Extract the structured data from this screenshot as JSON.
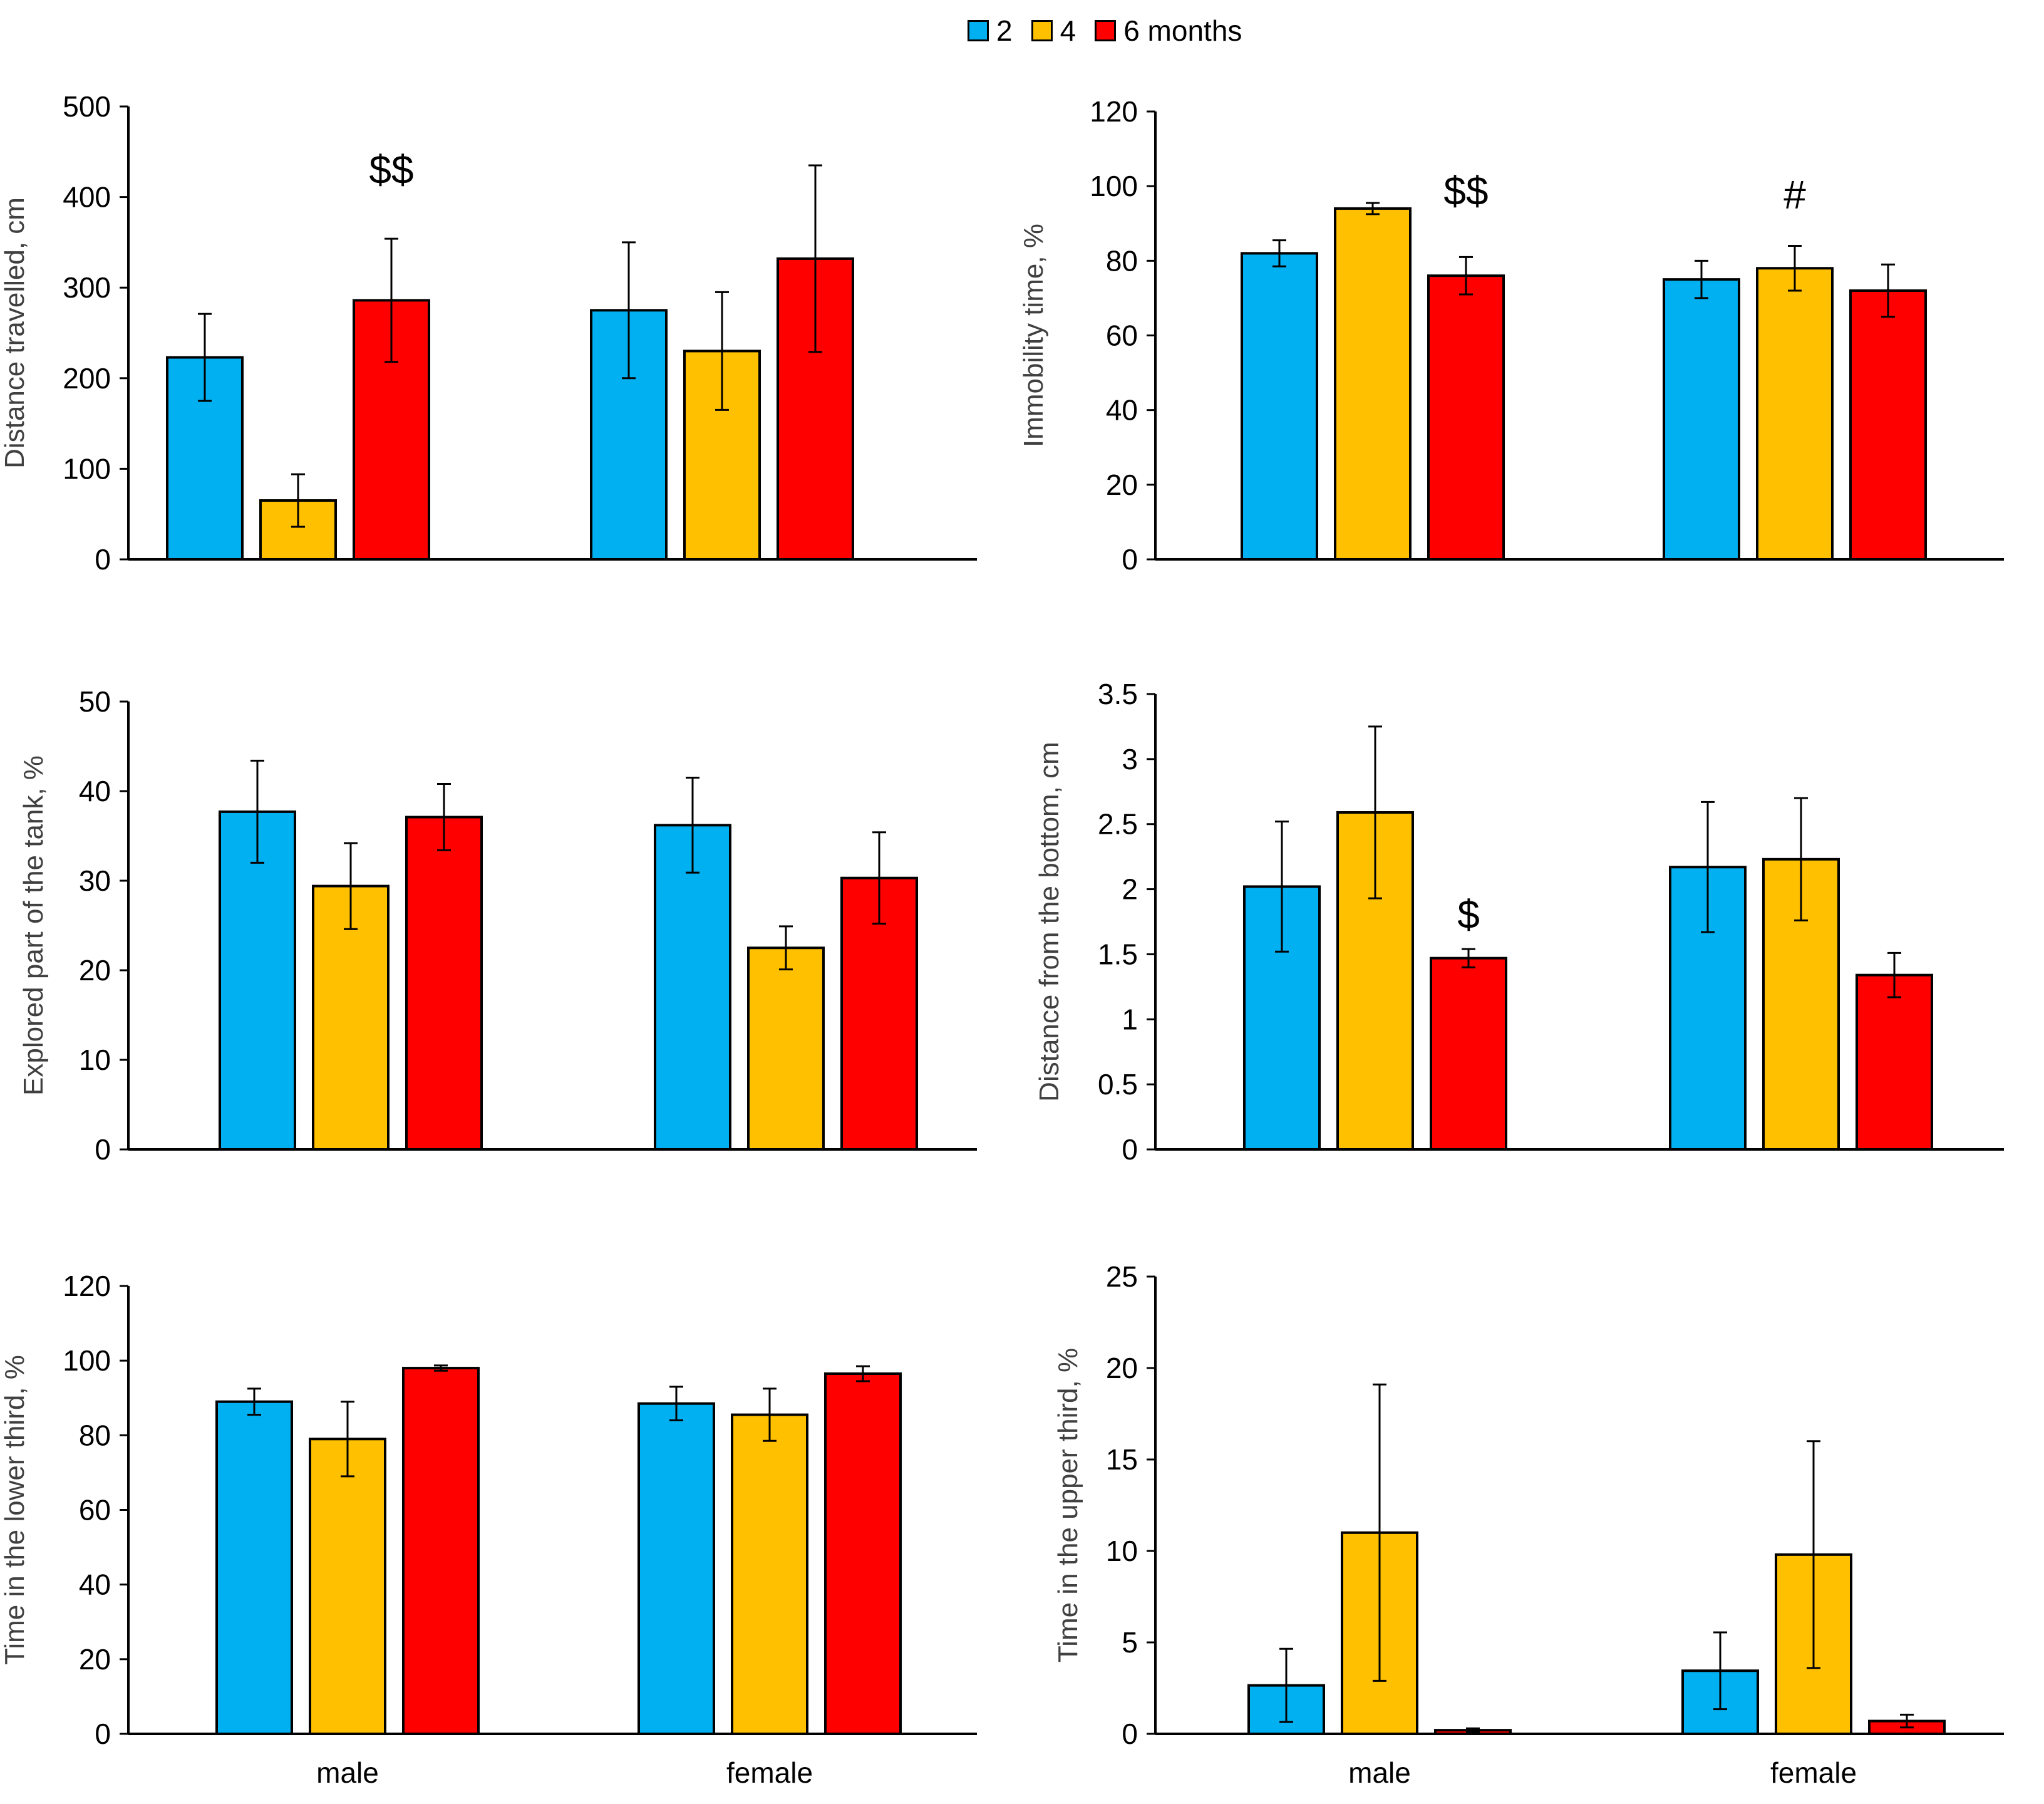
{
  "legend": {
    "items": [
      {
        "label": "2",
        "color": "#00B0F0"
      },
      {
        "label": "4",
        "color": "#FFC000"
      },
      {
        "label": "6 months",
        "color": "#FF0000"
      }
    ]
  },
  "chart_data": [
    {
      "type": "bar",
      "ylabel": "Distance travelled, cm",
      "ylim": [
        0,
        500
      ],
      "yticks": [
        0,
        100,
        200,
        300,
        400,
        500
      ],
      "categories": [
        "male",
        "female"
      ],
      "show_categories": false,
      "series": [
        {
          "name": "2",
          "values": [
            223,
            275
          ],
          "errors": [
            48,
            75
          ]
        },
        {
          "name": "4",
          "values": [
            65,
            230
          ],
          "errors": [
            29,
            65
          ]
        },
        {
          "name": "6 months",
          "values": [
            286,
            332
          ],
          "errors": [
            68,
            103
          ]
        }
      ],
      "annotations": [
        {
          "text": "$$",
          "series": 2,
          "category": 0,
          "value": 415
        }
      ]
    },
    {
      "type": "bar",
      "ylabel": "Immobility time, %",
      "ylim": [
        0,
        120
      ],
      "yticks": [
        0,
        20,
        40,
        60,
        80,
        100,
        120
      ],
      "categories": [
        "male",
        "female"
      ],
      "show_categories": false,
      "series": [
        {
          "name": "2",
          "values": [
            82,
            75
          ],
          "errors": [
            3.5,
            5
          ]
        },
        {
          "name": "4",
          "values": [
            94,
            78
          ],
          "errors": [
            1.5,
            6
          ]
        },
        {
          "name": "6 months",
          "values": [
            76,
            72
          ],
          "errors": [
            5,
            7
          ]
        }
      ],
      "annotations": [
        {
          "text": "$$",
          "series": 2,
          "category": 0,
          "value": 95
        },
        {
          "text": "#",
          "series": 1,
          "category": 1,
          "value": 94
        }
      ]
    },
    {
      "type": "bar",
      "ylabel": "Explored  part of the tank, %",
      "ylim": [
        0,
        50
      ],
      "yticks": [
        0,
        10,
        20,
        30,
        40,
        50
      ],
      "categories": [
        "male",
        "female"
      ],
      "show_categories": false,
      "series": [
        {
          "name": "2",
          "values": [
            37.7,
            36.2
          ],
          "errors": [
            5.7,
            5.3
          ]
        },
        {
          "name": "4",
          "values": [
            29.4,
            22.5
          ],
          "errors": [
            4.8,
            2.4
          ]
        },
        {
          "name": "6 months",
          "values": [
            37.1,
            30.3
          ],
          "errors": [
            3.7,
            5.1
          ]
        }
      ],
      "annotations": []
    },
    {
      "type": "bar",
      "ylabel": "Distance from the bottom, cm",
      "ylim": [
        0,
        3.5
      ],
      "yticks": [
        "0",
        "0.5",
        "1",
        "1.5",
        "2",
        "2.5",
        "3",
        "3.5"
      ],
      "categories": [
        "male",
        "female"
      ],
      "show_categories": false,
      "series": [
        {
          "name": "2",
          "values": [
            2.02,
            2.17
          ],
          "errors": [
            0.5,
            0.5
          ]
        },
        {
          "name": "4",
          "values": [
            2.59,
            2.23
          ],
          "errors": [
            0.66,
            0.47
          ]
        },
        {
          "name": "6 months",
          "values": [
            1.47,
            1.34
          ],
          "errors": [
            0.07,
            0.17
          ]
        }
      ],
      "annotations": [
        {
          "text": "$",
          "series": 2,
          "category": 0,
          "value": 1.7
        }
      ]
    },
    {
      "type": "bar",
      "ylabel": "Time in the lower third, %",
      "ylim": [
        0,
        120
      ],
      "yticks": [
        0,
        20,
        40,
        60,
        80,
        100,
        120
      ],
      "categories": [
        "male",
        "female"
      ],
      "show_categories": true,
      "series": [
        {
          "name": "2",
          "values": [
            89,
            88.5
          ],
          "errors": [
            3.5,
            4.5
          ]
        },
        {
          "name": "4",
          "values": [
            79,
            85.5
          ],
          "errors": [
            10,
            7
          ]
        },
        {
          "name": "6 months",
          "values": [
            98,
            96.5
          ],
          "errors": [
            0.7,
            2
          ]
        }
      ],
      "annotations": []
    },
    {
      "type": "bar",
      "ylabel": "Time in the upper third, %",
      "ylim": [
        0,
        25
      ],
      "yticks": [
        0,
        5,
        10,
        15,
        20,
        25
      ],
      "categories": [
        "male",
        "female"
      ],
      "show_categories": true,
      "series": [
        {
          "name": "2",
          "values": [
            2.65,
            3.45
          ],
          "errors": [
            2,
            2.1
          ]
        },
        {
          "name": "4",
          "values": [
            11,
            9.8
          ],
          "errors": [
            8.1,
            6.2
          ]
        },
        {
          "name": "6 months",
          "values": [
            0.2,
            0.7
          ],
          "errors": [
            0.1,
            0.35
          ]
        }
      ],
      "annotations": []
    }
  ]
}
